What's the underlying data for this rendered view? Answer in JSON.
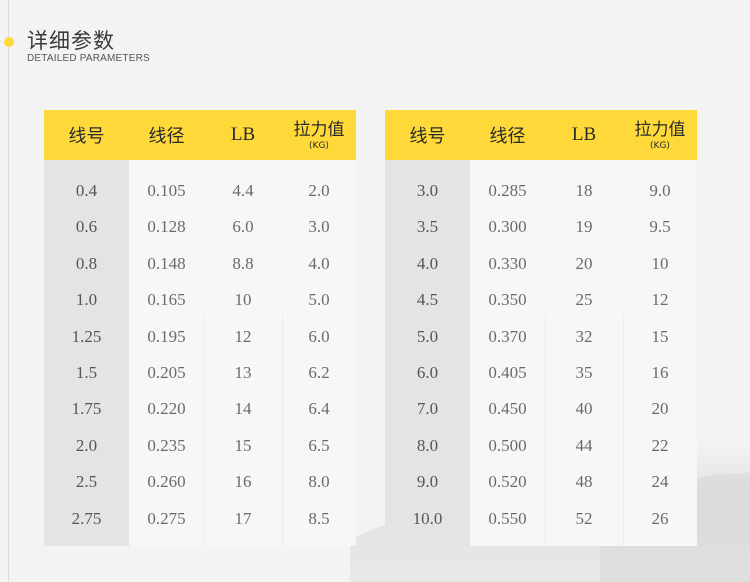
{
  "header": {
    "title_cn": "详细参数",
    "title_en": "DETAILED PARAMETERS"
  },
  "colors": {
    "accent": "#ffd93a",
    "background": "#f3f3f3"
  },
  "tables": [
    {
      "headers": {
        "line_no": "线号",
        "diameter": "线径",
        "lb": "LB",
        "strength": "拉力值",
        "strength_unit": "(KG)"
      },
      "rows": [
        [
          "0.4",
          "0.105",
          "4.4",
          "2.0"
        ],
        [
          "0.6",
          "0.128",
          "6.0",
          "3.0"
        ],
        [
          "0.8",
          "0.148",
          "8.8",
          "4.0"
        ],
        [
          "1.0",
          "0.165",
          "10",
          "5.0"
        ],
        [
          "1.25",
          "0.195",
          "12",
          "6.0"
        ],
        [
          "1.5",
          "0.205",
          "13",
          "6.2"
        ],
        [
          "1.75",
          "0.220",
          "14",
          "6.4"
        ],
        [
          "2.0",
          "0.235",
          "15",
          "6.5"
        ],
        [
          "2.5",
          "0.260",
          "16",
          "8.0"
        ],
        [
          "2.75",
          "0.275",
          "17",
          "8.5"
        ]
      ]
    },
    {
      "headers": {
        "line_no": "线号",
        "diameter": "线径",
        "lb": "LB",
        "strength": "拉力值",
        "strength_unit": "(KG)"
      },
      "rows": [
        [
          "3.0",
          "0.285",
          "18",
          "9.0"
        ],
        [
          "3.5",
          "0.300",
          "19",
          "9.5"
        ],
        [
          "4.0",
          "0.330",
          "20",
          "10"
        ],
        [
          "4.5",
          "0.350",
          "25",
          "12"
        ],
        [
          "5.0",
          "0.370",
          "32",
          "15"
        ],
        [
          "6.0",
          "0.405",
          "35",
          "16"
        ],
        [
          "7.0",
          "0.450",
          "40",
          "20"
        ],
        [
          "8.0",
          "0.500",
          "44",
          "22"
        ],
        [
          "9.0",
          "0.520",
          "48",
          "24"
        ],
        [
          "10.0",
          "0.550",
          "52",
          "26"
        ]
      ]
    }
  ]
}
